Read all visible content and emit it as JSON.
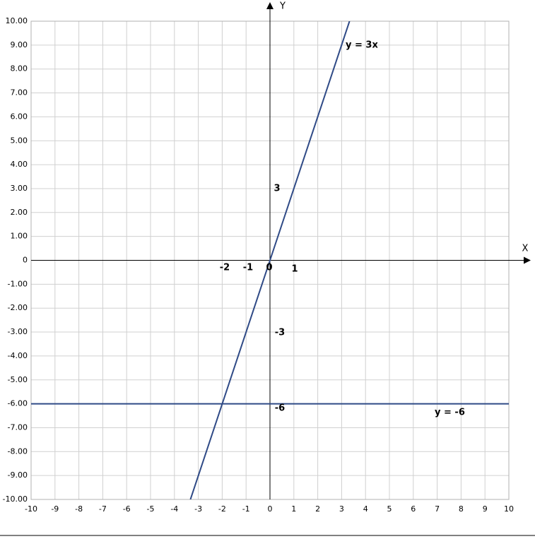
{
  "chart_data": {
    "type": "line",
    "x_label": "X",
    "y_label": "Y",
    "series": [
      {
        "name": "y = 3x",
        "color": "#2f4a86",
        "x": [
          -3.33,
          3.33
        ],
        "values": [
          -10,
          10
        ]
      },
      {
        "name": "y = -6",
        "color": "#2f4a86",
        "x": [
          -10,
          10
        ],
        "values": [
          -6,
          -6
        ]
      }
    ],
    "annotations": [
      "-2",
      "-1",
      "0",
      "1",
      "3",
      "-3",
      "-6"
    ],
    "xlim": [
      -10,
      10
    ],
    "xticks": [
      -10,
      -9,
      -8,
      -7,
      -6,
      -5,
      -4,
      -3,
      -2,
      -1,
      0,
      1,
      2,
      3,
      4,
      5,
      6,
      7,
      8,
      9,
      10
    ],
    "ylim": [
      -10,
      10
    ],
    "yticks": [
      {
        "value": -10,
        "label": "-10.00"
      },
      {
        "value": -9,
        "label": "-9.00"
      },
      {
        "value": -8,
        "label": "-8.00"
      },
      {
        "value": -7,
        "label": "-7.00"
      },
      {
        "value": -6,
        "label": "-6.00"
      },
      {
        "value": -5,
        "label": "-5.00"
      },
      {
        "value": -4,
        "label": "-4.00"
      },
      {
        "value": -3,
        "label": "-3.00"
      },
      {
        "value": -2,
        "label": "-2.00"
      },
      {
        "value": -1,
        "label": "-1.00"
      },
      0,
      {
        "value": 1,
        "label": "1.00"
      },
      {
        "value": 2,
        "label": "2.00"
      },
      {
        "value": 3,
        "label": "3.00"
      },
      {
        "value": 4,
        "label": "4.00"
      },
      {
        "value": 5,
        "label": "5.00"
      },
      {
        "value": 6,
        "label": "6.00"
      },
      {
        "value": 7,
        "label": "7.00"
      },
      {
        "value": 8,
        "label": "8.00"
      },
      {
        "value": 9,
        "label": "9.00"
      },
      {
        "value": 10,
        "label": "10.00"
      }
    ],
    "grid": true
  }
}
